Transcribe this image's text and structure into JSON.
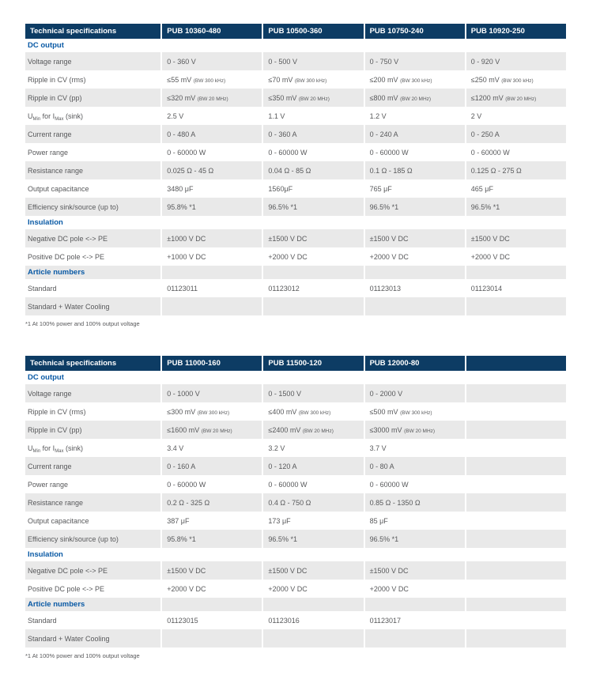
{
  "colors": {
    "header_bg": "#0d3c64",
    "header_text": "#ffffff",
    "section_text": "#0a5aa5",
    "row_alt_bg": "#e9e9e9",
    "body_text": "#58595b"
  },
  "tables": [
    {
      "header": [
        "Technical specifications",
        "PUB 10360-480",
        "PUB 10500-360",
        "PUB 10750-240",
        "PUB 10920-250"
      ],
      "footnote": "*1 At 100% power and 100% output voltage",
      "rows": [
        {
          "type": "section",
          "label": "DC output"
        },
        {
          "type": "data",
          "label": "Voltage range",
          "values": [
            "0 - 360 V",
            "0 - 500 V",
            "0 - 750 V",
            "0 - 920 V"
          ]
        },
        {
          "type": "data",
          "label": "Ripple in CV (rms)",
          "values": [
            {
              "main": "≤55 mV",
              "note": "(BW 300 kHz)"
            },
            {
              "main": "≤70 mV",
              "note": "(BW 300 kHz)"
            },
            {
              "main": "≤200 mV",
              "note": "(BW 300 kHz)"
            },
            {
              "main": "≤250 mV",
              "note": "(BW 300 kHz)"
            }
          ]
        },
        {
          "type": "data",
          "label": "Ripple in CV (pp)",
          "values": [
            {
              "main": "≤320 mV",
              "note": "(BW 20 MHz)"
            },
            {
              "main": "≤350 mV",
              "note": "(BW 20 MHz)"
            },
            {
              "main": "≤800 mV",
              "note": "(BW 20 MHz)"
            },
            {
              "main": "≤1200 mV",
              "note": "(BW 20 MHz)"
            }
          ]
        },
        {
          "type": "data",
          "label": {
            "parts": [
              {
                "text": "U"
              },
              {
                "text": "Min",
                "sub": true
              },
              {
                "text": " for I"
              },
              {
                "text": "Max",
                "sub": true
              },
              {
                "text": " (sink)"
              }
            ]
          },
          "values": [
            "2.5 V",
            "1.1 V",
            "1.2 V",
            "2 V"
          ]
        },
        {
          "type": "data",
          "label": "Current range",
          "values": [
            "0 - 480 A",
            "0 - 360 A",
            "0 - 240 A",
            "0 - 250 A"
          ]
        },
        {
          "type": "data",
          "label": "Power range",
          "values": [
            "0 - 60000 W",
            "0 - 60000 W",
            "0 - 60000 W",
            "0 - 60000 W"
          ]
        },
        {
          "type": "data",
          "label": "Resistance range",
          "values": [
            "0.025 Ω - 45 Ω",
            "0.04 Ω - 85 Ω",
            "0.1 Ω - 185 Ω",
            "0.125 Ω - 275 Ω"
          ]
        },
        {
          "type": "data",
          "label": "Output capacitance",
          "values": [
            "3480 μF",
            "1560μF",
            "765 μF",
            "465 μF"
          ]
        },
        {
          "type": "data",
          "label": "Efficiency sink/source (up to)",
          "values": [
            "95.8% *1",
            "96.5% *1",
            "96.5% *1",
            "96.5% *1"
          ]
        },
        {
          "type": "section",
          "label": "Insulation"
        },
        {
          "type": "data",
          "label": "Negative DC pole <-> PE",
          "values": [
            "±1000 V DC",
            "±1500 V DC",
            "±1500 V DC",
            "±1500 V DC"
          ]
        },
        {
          "type": "data",
          "label": "Positive DC pole <-> PE",
          "values": [
            "+1000 V DC",
            "+2000 V DC",
            "+2000 V DC",
            "+2000 V DC"
          ]
        },
        {
          "type": "section",
          "label": "Article numbers"
        },
        {
          "type": "data",
          "label": "Standard",
          "values": [
            "01123011",
            "01123012",
            "01123013",
            "01123014"
          ]
        },
        {
          "type": "data",
          "label": "Standard + Water Cooling",
          "values": [
            "",
            "",
            "",
            ""
          ]
        }
      ]
    },
    {
      "header": [
        "Technical specifications",
        "PUB 11000-160",
        "PUB 11500-120",
        "PUB 12000-80",
        ""
      ],
      "footnote": "*1 At 100% power and 100% output voltage",
      "rows": [
        {
          "type": "section",
          "label": "DC output"
        },
        {
          "type": "data",
          "label": "Voltage range",
          "values": [
            "0 - 1000 V",
            "0 - 1500 V",
            "0 - 2000 V",
            ""
          ]
        },
        {
          "type": "data",
          "label": "Ripple in CV (rms)",
          "values": [
            {
              "main": "≤300 mV",
              "note": "(BW 300 kHz)"
            },
            {
              "main": "≤400 mV",
              "note": "(BW 300 kHz)"
            },
            {
              "main": "≤500 mV",
              "note": "(BW 300 kHz)"
            },
            ""
          ]
        },
        {
          "type": "data",
          "label": "Ripple in CV (pp)",
          "values": [
            {
              "main": "≤1600 mV",
              "note": "(BW 20 MHz)"
            },
            {
              "main": "≤2400 mV",
              "note": "(BW 20 MHz)"
            },
            {
              "main": "≤3000 mV",
              "note": "(BW 20 MHz)"
            },
            ""
          ]
        },
        {
          "type": "data",
          "label": {
            "parts": [
              {
                "text": "U"
              },
              {
                "text": "Min",
                "sub": true
              },
              {
                "text": " for I"
              },
              {
                "text": "Max",
                "sub": true
              },
              {
                "text": " (sink)"
              }
            ]
          },
          "values": [
            "3.4 V",
            "3.2 V",
            "3.7 V",
            ""
          ]
        },
        {
          "type": "data",
          "label": "Current range",
          "values": [
            "0 - 160 A",
            "0 - 120 A",
            "0 - 80 A",
            ""
          ]
        },
        {
          "type": "data",
          "label": "Power range",
          "values": [
            "0 - 60000 W",
            "0 - 60000 W",
            "0 - 60000 W",
            ""
          ]
        },
        {
          "type": "data",
          "label": "Resistance range",
          "values": [
            "0.2 Ω - 325 Ω",
            "0.4 Ω - 750 Ω",
            "0.85 Ω - 1350 Ω",
            ""
          ]
        },
        {
          "type": "data",
          "label": "Output capacitance",
          "values": [
            "387 μF",
            "173 μF",
            "85 μF",
            ""
          ]
        },
        {
          "type": "data",
          "label": "Efficiency sink/source (up to)",
          "values": [
            "95.8% *1",
            "96.5% *1",
            "96.5% *1",
            ""
          ]
        },
        {
          "type": "section",
          "label": "Insulation"
        },
        {
          "type": "data",
          "label": "Negative DC pole <-> PE",
          "values": [
            "±1500 V DC",
            "±1500 V DC",
            "±1500 V DC",
            ""
          ]
        },
        {
          "type": "data",
          "label": "Positive DC pole <-> PE",
          "values": [
            "+2000 V DC",
            "+2000 V DC",
            "+2000 V DC",
            ""
          ]
        },
        {
          "type": "section",
          "label": "Article numbers"
        },
        {
          "type": "data",
          "label": "Standard",
          "values": [
            "01123015",
            "01123016",
            "01123017",
            ""
          ]
        },
        {
          "type": "data",
          "label": "Standard + Water Cooling",
          "values": [
            "",
            "",
            "",
            ""
          ]
        }
      ]
    }
  ]
}
